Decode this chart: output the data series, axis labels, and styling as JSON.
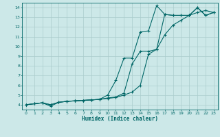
{
  "xlabel": "Humidex (Indice chaleur)",
  "bg_color": "#cce8e8",
  "grid_color": "#aacccc",
  "line_color": "#006666",
  "xlim": [
    -0.5,
    23.5
  ],
  "ylim": [
    3.5,
    14.5
  ],
  "xticks": [
    0,
    1,
    2,
    3,
    4,
    5,
    6,
    7,
    8,
    9,
    10,
    11,
    12,
    13,
    14,
    15,
    16,
    17,
    18,
    19,
    20,
    21,
    22,
    23
  ],
  "yticks": [
    4,
    5,
    6,
    7,
    8,
    9,
    10,
    11,
    12,
    13,
    14
  ],
  "line1_x": [
    0,
    1,
    2,
    3,
    4,
    5,
    6,
    7,
    8,
    9,
    10,
    11,
    12,
    13,
    14,
    15,
    16,
    17,
    18,
    19,
    20,
    21,
    22,
    23
  ],
  "line1_y": [
    4.0,
    4.1,
    4.2,
    3.85,
    4.25,
    4.35,
    4.4,
    4.45,
    4.5,
    4.55,
    5.0,
    6.5,
    8.8,
    8.8,
    11.5,
    11.6,
    14.2,
    13.3,
    13.2,
    13.2,
    13.2,
    14.0,
    13.2,
    13.5
  ],
  "line2_x": [
    0,
    1,
    2,
    3,
    4,
    5,
    6,
    7,
    8,
    9,
    10,
    11,
    12,
    13,
    14,
    15,
    16,
    17,
    18,
    19,
    20,
    21,
    22,
    23
  ],
  "line2_y": [
    4.0,
    4.1,
    4.2,
    4.0,
    4.25,
    4.35,
    4.4,
    4.45,
    4.5,
    4.55,
    4.7,
    4.8,
    5.2,
    8.2,
    9.5,
    9.5,
    9.7,
    13.3,
    13.2,
    13.2,
    13.2,
    14.0,
    13.2,
    13.5
  ],
  "line3_x": [
    0,
    1,
    2,
    3,
    4,
    5,
    6,
    7,
    8,
    9,
    10,
    11,
    12,
    13,
    14,
    15,
    16,
    17,
    18,
    19,
    20,
    21,
    22,
    23
  ],
  "line3_y": [
    4.0,
    4.1,
    4.2,
    4.0,
    4.25,
    4.35,
    4.4,
    4.45,
    4.5,
    4.55,
    4.65,
    4.75,
    5.0,
    5.3,
    6.0,
    9.2,
    9.7,
    11.2,
    12.2,
    12.7,
    13.2,
    13.5,
    13.7,
    13.5
  ]
}
